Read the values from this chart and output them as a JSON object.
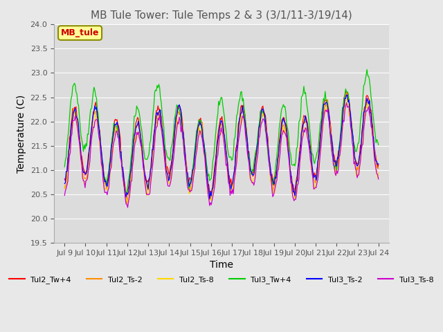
{
  "title": "MB Tule Tower: Tule Temps 2 & 3 (3/1/11-3/19/14)",
  "xlabel": "Time",
  "ylabel": "Temperature (C)",
  "ylim": [
    19.5,
    24.0
  ],
  "yticks": [
    19.5,
    20.0,
    20.5,
    21.0,
    21.5,
    22.0,
    22.5,
    23.0,
    23.5,
    24.0
  ],
  "xtick_labels": [
    "Jul 9",
    "Jul 10",
    "Jul 11",
    "Jul 12",
    "Jul 13",
    "Jul 14",
    "Jul 15",
    "Jul 16",
    "Jul 17",
    "Jul 18",
    "Jul 19",
    "Jul 20",
    "Jul 21",
    "Jul 22",
    "Jul 23",
    "Jul 24"
  ],
  "legend_label": "MB_tule",
  "series_colors": {
    "Tul2_Tw+4": "#FF0000",
    "Tul2_Ts-2": "#FF8C00",
    "Tul2_Ts-8": "#FFD700",
    "Tul3_Tw+4": "#00CC00",
    "Tul3_Ts-2": "#0000FF",
    "Tul3_Ts-8": "#CC00CC"
  },
  "background_color": "#E8E8E8",
  "plot_bg_color": "#DCDCDC",
  "grid_color": "#FFFFFF",
  "legend_box_color": "#FFFF99",
  "legend_box_edge": "#8B8B00"
}
